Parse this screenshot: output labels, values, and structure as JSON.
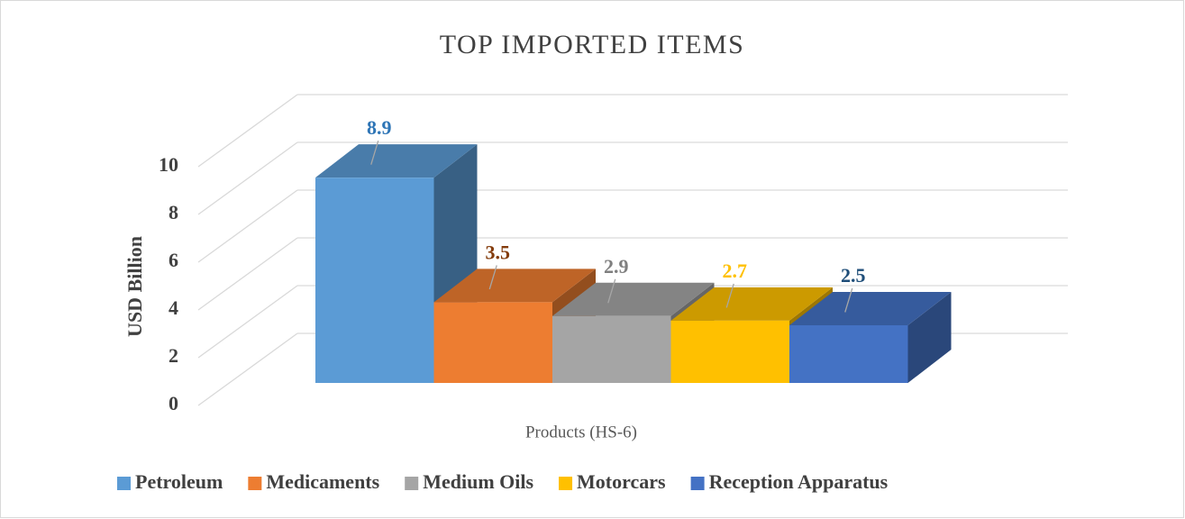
{
  "chart_data": {
    "type": "bar3d",
    "title": "TOP IMPORTED ITEMS",
    "y_label": "USD Billion",
    "x_label": "Products (HS-6)",
    "categories": [
      null
    ],
    "series": [
      {
        "name": "Petroleum",
        "color": "#5b9bd5",
        "label_color": "#2e75b6",
        "values": [
          8.9
        ]
      },
      {
        "name": "Medicaments",
        "color": "#ed7d31",
        "label_color": "#843c0c",
        "values": [
          3.5
        ]
      },
      {
        "name": "Medium Oils",
        "color": "#a5a5a5",
        "label_color": "#7f7f7f",
        "values": [
          2.9
        ]
      },
      {
        "name": "Motorcars",
        "color": "#ffc000",
        "label_color": "#ffc000",
        "values": [
          2.7
        ]
      },
      {
        "name": "Reception Apparatus",
        "color": "#4472c4",
        "label_color": "#1f4e79",
        "values": [
          2.5
        ]
      }
    ],
    "ylim": [
      0,
      10
    ],
    "yticks": [
      0,
      2,
      4,
      6,
      8,
      10
    ],
    "grid": true,
    "legend": "bottom"
  }
}
